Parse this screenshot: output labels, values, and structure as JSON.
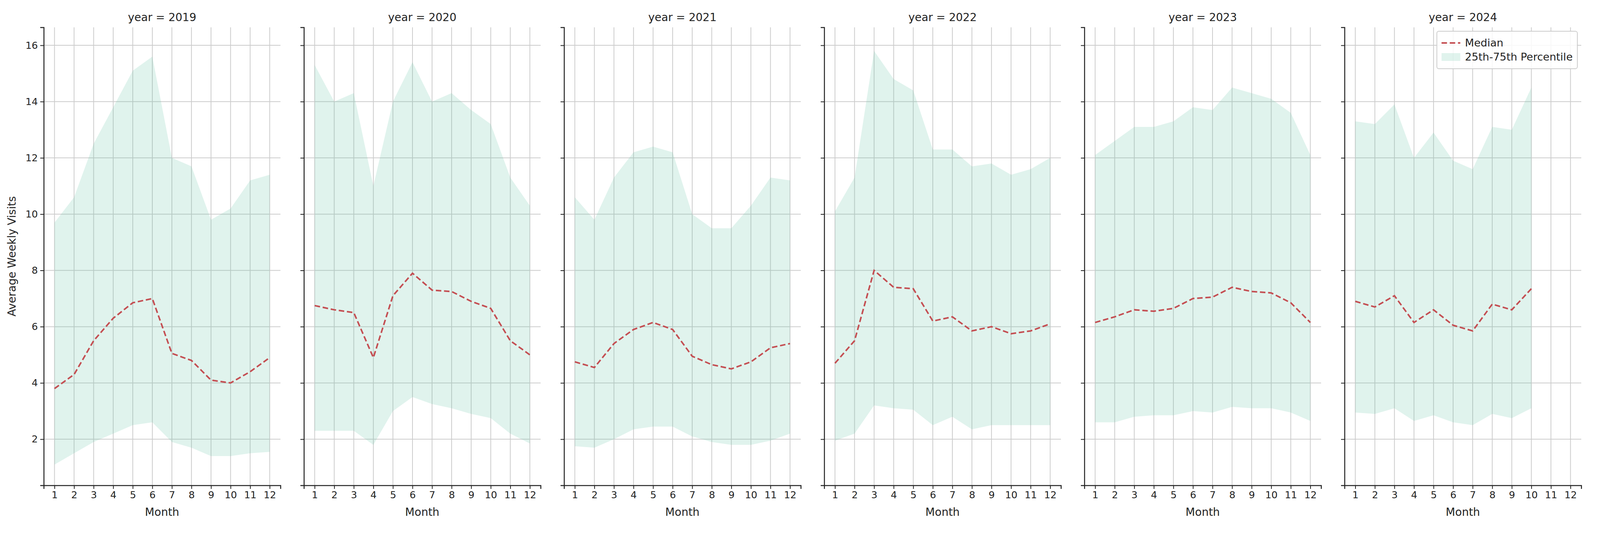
{
  "chart_data": [
    {
      "type": "line",
      "title": "year = 2019",
      "x_label": "Month",
      "y_label": "Average Weekly Visits",
      "x": [
        1,
        2,
        3,
        4,
        5,
        6,
        7,
        8,
        9,
        10,
        11,
        12
      ],
      "xlim": [
        0.45,
        12.55
      ],
      "xticks": [
        1,
        2,
        3,
        4,
        5,
        6,
        7,
        8,
        9,
        10,
        11,
        12
      ],
      "ylim": [
        0.36,
        16.64
      ],
      "yticks": [
        2,
        4,
        6,
        8,
        10,
        12,
        14,
        16
      ],
      "grid": true,
      "series": [
        {
          "type": "area",
          "color": "#66c2a5",
          "lower": [
            1.1,
            1.5,
            1.9,
            2.2,
            2.5,
            2.6,
            1.9,
            1.7,
            1.4,
            1.4,
            1.5,
            1.55
          ],
          "upper": [
            9.7,
            10.6,
            12.5,
            13.8,
            15.1,
            15.6,
            12.0,
            11.7,
            9.8,
            10.2,
            11.2,
            11.4
          ]
        },
        {
          "type": "line",
          "color": "#c44e52",
          "line_style": "dashed",
          "values": [
            3.8,
            4.3,
            5.5,
            6.3,
            6.85,
            7.0,
            5.05,
            4.8,
            4.1,
            4.0,
            4.4,
            4.9
          ]
        }
      ]
    },
    {
      "type": "line",
      "title": "year = 2020",
      "x_label": "Month",
      "tick_labels": "x",
      "x": [
        1,
        2,
        3,
        4,
        5,
        6,
        7,
        8,
        9,
        10,
        11,
        12
      ],
      "xlim": [
        0.45,
        12.55
      ],
      "xticks": [
        1,
        2,
        3,
        4,
        5,
        6,
        7,
        8,
        9,
        10,
        11,
        12
      ],
      "ylim": [
        0.36,
        16.64
      ],
      "yticks": [
        2,
        4,
        6,
        8,
        10,
        12,
        14,
        16
      ],
      "grid": true,
      "series": [
        {
          "type": "area",
          "color": "#66c2a5",
          "lower": [
            2.3,
            2.3,
            2.3,
            1.8,
            3.0,
            3.5,
            3.25,
            3.1,
            2.9,
            2.75,
            2.2,
            1.85
          ],
          "upper": [
            15.3,
            14.0,
            14.3,
            11.0,
            14.0,
            15.4,
            14.0,
            14.3,
            13.7,
            13.2,
            11.3,
            10.3
          ]
        },
        {
          "type": "line",
          "color": "#c44e52",
          "line_style": "dashed",
          "values": [
            6.75,
            6.6,
            6.5,
            4.9,
            7.1,
            7.9,
            7.3,
            7.25,
            6.9,
            6.65,
            5.5,
            5.0
          ]
        }
      ]
    },
    {
      "type": "line",
      "title": "year = 2021",
      "x_label": "Month",
      "tick_labels": "x",
      "x": [
        1,
        2,
        3,
        4,
        5,
        6,
        7,
        8,
        9,
        10,
        11,
        12
      ],
      "xlim": [
        0.45,
        12.55
      ],
      "xticks": [
        1,
        2,
        3,
        4,
        5,
        6,
        7,
        8,
        9,
        10,
        11,
        12
      ],
      "ylim": [
        0.36,
        16.64
      ],
      "yticks": [
        2,
        4,
        6,
        8,
        10,
        12,
        14,
        16
      ],
      "grid": true,
      "series": [
        {
          "type": "area",
          "color": "#66c2a5",
          "lower": [
            1.75,
            1.7,
            2.0,
            2.35,
            2.45,
            2.45,
            2.1,
            1.9,
            1.8,
            1.8,
            1.95,
            2.2
          ],
          "upper": [
            10.6,
            9.8,
            11.3,
            12.2,
            12.4,
            12.2,
            10.0,
            9.5,
            9.5,
            10.3,
            11.3,
            11.2
          ]
        },
        {
          "type": "line",
          "color": "#c44e52",
          "line_style": "dashed",
          "values": [
            4.75,
            4.55,
            5.4,
            5.9,
            6.15,
            5.9,
            4.95,
            4.65,
            4.5,
            4.75,
            5.25,
            5.4
          ]
        }
      ]
    },
    {
      "type": "line",
      "title": "year = 2022",
      "x_label": "Month",
      "tick_labels": "x",
      "x": [
        1,
        2,
        3,
        4,
        5,
        6,
        7,
        8,
        9,
        10,
        11,
        12
      ],
      "xlim": [
        0.45,
        12.55
      ],
      "xticks": [
        1,
        2,
        3,
        4,
        5,
        6,
        7,
        8,
        9,
        10,
        11,
        12
      ],
      "ylim": [
        0.36,
        16.64
      ],
      "yticks": [
        2,
        4,
        6,
        8,
        10,
        12,
        14,
        16
      ],
      "grid": true,
      "series": [
        {
          "type": "area",
          "color": "#66c2a5",
          "lower": [
            1.95,
            2.2,
            3.2,
            3.1,
            3.05,
            2.5,
            2.8,
            2.35,
            2.5,
            2.5,
            2.5,
            2.5
          ],
          "upper": [
            10.1,
            11.3,
            15.8,
            14.8,
            14.4,
            12.3,
            12.3,
            11.7,
            11.8,
            11.4,
            11.6,
            12.0
          ]
        },
        {
          "type": "line",
          "color": "#c44e52",
          "line_style": "dashed",
          "values": [
            4.7,
            5.5,
            8.0,
            7.4,
            7.35,
            6.2,
            6.35,
            5.85,
            6.0,
            5.75,
            5.85,
            6.1
          ]
        }
      ]
    },
    {
      "type": "line",
      "title": "year = 2023",
      "x_label": "Month",
      "tick_labels": "x",
      "x": [
        1,
        2,
        3,
        4,
        5,
        6,
        7,
        8,
        9,
        10,
        11,
        12
      ],
      "xlim": [
        0.45,
        12.55
      ],
      "xticks": [
        1,
        2,
        3,
        4,
        5,
        6,
        7,
        8,
        9,
        10,
        11,
        12
      ],
      "ylim": [
        0.36,
        16.64
      ],
      "yticks": [
        2,
        4,
        6,
        8,
        10,
        12,
        14,
        16
      ],
      "grid": true,
      "series": [
        {
          "type": "area",
          "color": "#66c2a5",
          "lower": [
            2.6,
            2.6,
            2.8,
            2.85,
            2.85,
            3.0,
            2.95,
            3.15,
            3.1,
            3.1,
            2.95,
            2.65
          ],
          "upper": [
            12.1,
            12.6,
            13.1,
            13.1,
            13.3,
            13.8,
            13.7,
            14.5,
            14.3,
            14.1,
            13.6,
            12.1
          ]
        },
        {
          "type": "line",
          "color": "#c44e52",
          "line_style": "dashed",
          "values": [
            6.15,
            6.35,
            6.6,
            6.55,
            6.65,
            7.0,
            7.05,
            7.4,
            7.25,
            7.2,
            6.85,
            6.15
          ]
        }
      ]
    },
    {
      "type": "line",
      "title": "year = 2024",
      "x_label": "Month",
      "tick_labels": "x",
      "legend": "upper right",
      "x": [
        1,
        2,
        3,
        4,
        5,
        6,
        7,
        8,
        9,
        10
      ],
      "xlim": [
        0.45,
        12.55
      ],
      "xticks": [
        1,
        2,
        3,
        4,
        5,
        6,
        7,
        8,
        9,
        10,
        11,
        12
      ],
      "ylim": [
        0.36,
        16.64
      ],
      "yticks": [
        2,
        4,
        6,
        8,
        10,
        12,
        14,
        16
      ],
      "grid": true,
      "series": [
        {
          "type": "area",
          "name": "25th-75th Percentile",
          "color": "#66c2a5",
          "lower": [
            2.95,
            2.9,
            3.1,
            2.65,
            2.85,
            2.6,
            2.5,
            2.9,
            2.75,
            3.1
          ],
          "upper": [
            13.3,
            13.2,
            13.9,
            12.0,
            12.9,
            11.9,
            11.6,
            13.1,
            13.0,
            14.5
          ]
        },
        {
          "type": "line",
          "name": "Median",
          "color": "#c44e52",
          "line_style": "dashed",
          "values": [
            6.9,
            6.7,
            7.1,
            6.15,
            6.6,
            6.05,
            5.85,
            6.8,
            6.6,
            7.35
          ]
        }
      ]
    }
  ]
}
